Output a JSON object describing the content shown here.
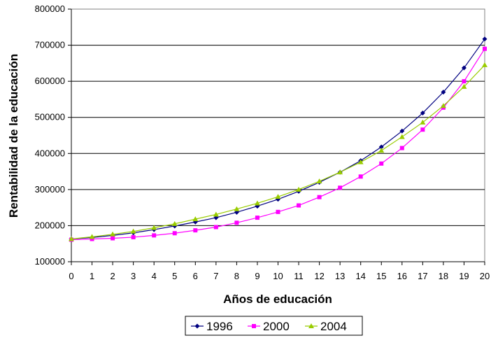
{
  "chart_data": {
    "type": "line",
    "title": "",
    "xlabel": "Años de educación",
    "ylabel": "Rentabilidad de la educación",
    "x": [
      0,
      1,
      2,
      3,
      4,
      5,
      6,
      7,
      8,
      9,
      10,
      11,
      12,
      13,
      14,
      15,
      16,
      17,
      18,
      19,
      20
    ],
    "ylim": [
      100000,
      800000
    ],
    "yticks": [
      100000,
      200000,
      300000,
      400000,
      500000,
      600000,
      700000,
      800000
    ],
    "grid": true,
    "legend_position": "bottom-center",
    "series": [
      {
        "name": "1996",
        "color": "#000080",
        "marker": "diamond",
        "values": [
          163000,
          167000,
          173000,
          180000,
          189000,
          199000,
          210000,
          222000,
          237000,
          254000,
          273000,
          295000,
          320000,
          348000,
          380000,
          418000,
          462000,
          512000,
          570000,
          637000,
          717000
        ]
      },
      {
        "name": "2000",
        "color": "#FF00FF",
        "marker": "square",
        "values": [
          161000,
          163000,
          165000,
          168000,
          173000,
          179000,
          187000,
          196000,
          208000,
          222000,
          238000,
          256000,
          279000,
          305000,
          336000,
          372000,
          415000,
          466000,
          527000,
          600000,
          690000
        ]
      },
      {
        "name": "2004",
        "color": "#99CC00",
        "marker": "triangle",
        "values": [
          163000,
          169000,
          176000,
          184000,
          194000,
          205000,
          218000,
          231000,
          246000,
          262000,
          280000,
          300000,
          323000,
          348000,
          376000,
          408000,
          446000,
          486000,
          532000,
          585000,
          645000
        ]
      }
    ]
  }
}
